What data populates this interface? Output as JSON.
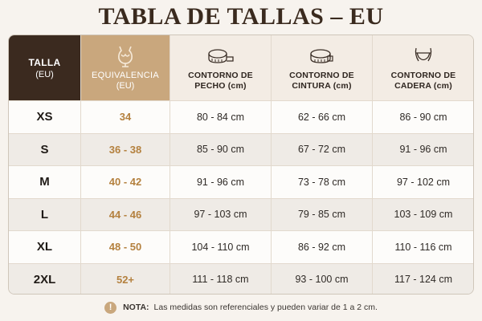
{
  "title": "TABLA DE TALLAS – EU",
  "header": {
    "talla": [
      "TALLA",
      "(EU)"
    ],
    "equivalencia": [
      "EQUIVALENCIA",
      "(EU)"
    ],
    "pecho": [
      "CONTORNO DE",
      "PECHO (cm)"
    ],
    "cintura": [
      "CONTORNO DE",
      "CINTURA (cm)"
    ],
    "cadera": [
      "CONTORNO DE",
      "CADERA (cm)"
    ]
  },
  "rows": [
    {
      "size": "XS",
      "equiv": "34",
      "pecho": "80 - 84 cm",
      "cintura": "62 - 66 cm",
      "cadera": "86 - 90 cm"
    },
    {
      "size": "S",
      "equiv": "36 - 38",
      "pecho": "85 - 90 cm",
      "cintura": "67 - 72 cm",
      "cadera": "91 - 96 cm"
    },
    {
      "size": "M",
      "equiv": "40 - 42",
      "pecho": "91 - 96 cm",
      "cintura": "73 - 78 cm",
      "cadera": "97 - 102 cm"
    },
    {
      "size": "L",
      "equiv": "44 - 46",
      "pecho": "97 - 103 cm",
      "cintura": "79 - 85 cm",
      "cadera": "103 - 109 cm"
    },
    {
      "size": "XL",
      "equiv": "48 - 50",
      "pecho": "104 - 110 cm",
      "cintura": "86 - 92 cm",
      "cadera": "110 - 116 cm"
    },
    {
      "size": "2XL",
      "equiv": "52+",
      "pecho": "111 - 118 cm",
      "cintura": "93 - 100 cm",
      "cadera": "117 - 124 cm"
    }
  ],
  "note": {
    "icon": "!",
    "label": "NOTA:",
    "text": "Las medidas son referenciales y pueden variar de 1 a 2 cm."
  },
  "icons": {
    "equivalencia": "bust-form-icon",
    "pecho": "measuring-tape-icon",
    "cintura": "measuring-tape-icon",
    "cadera": "hips-underwear-icon"
  },
  "colors": {
    "header_dark": "#3b2a1f",
    "header_gold": "#c9a77d",
    "equiv_text": "#b4813f"
  }
}
